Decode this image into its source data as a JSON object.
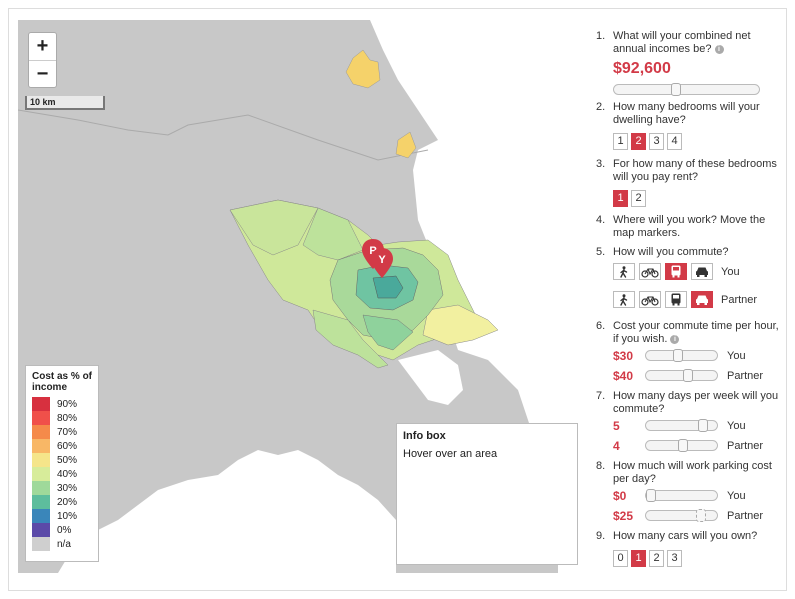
{
  "map": {
    "zoom_in": "+",
    "zoom_out": "−",
    "scale_label": "10 km",
    "legend": {
      "title": "Cost as % of income",
      "items": [
        {
          "label": "90%",
          "color": "#d7303f"
        },
        {
          "label": "80%",
          "color": "#f0504a"
        },
        {
          "label": "70%",
          "color": "#f58a4a"
        },
        {
          "label": "60%",
          "color": "#f8b766"
        },
        {
          "label": "50%",
          "color": "#f5e58a"
        },
        {
          "label": "40%",
          "color": "#d7ec9a"
        },
        {
          "label": "30%",
          "color": "#9fd99a"
        },
        {
          "label": "20%",
          "color": "#5dbd9d"
        },
        {
          "label": "10%",
          "color": "#3a86ba"
        },
        {
          "label": "0%",
          "color": "#5b4aa8"
        },
        {
          "label": "n/a",
          "color": "#cfcfcf"
        }
      ]
    },
    "infobox": {
      "title": "Info box",
      "text": "Hover over an area"
    },
    "markers": [
      "P",
      "Y"
    ]
  },
  "questions": {
    "q1": {
      "num": "1.",
      "text": "What will your combined net annual incomes be?",
      "value": "$92,600",
      "slider_fraction": 0.43
    },
    "q2": {
      "num": "2.",
      "text": "How many bedrooms will your dwelling have?",
      "options": [
        "1",
        "2",
        "3",
        "4"
      ],
      "selected": 1
    },
    "q3": {
      "num": "3.",
      "text": "For how many of these bedrooms will you pay rent?",
      "options": [
        "1",
        "2"
      ],
      "selected": 0
    },
    "q4": {
      "num": "4.",
      "text": "Where will you work? Move the map markers."
    },
    "q5": {
      "num": "5.",
      "text": "How will you commute?",
      "you_label": "You",
      "partner_label": "Partner",
      "modes": [
        "walk",
        "bike",
        "bus",
        "car"
      ],
      "you_selected": "bus",
      "partner_selected": "car"
    },
    "q6": {
      "num": "6.",
      "text": "Cost your commute time per hour, if you wish.",
      "you_value": "$30",
      "partner_value": "$40",
      "you_label": "You",
      "partner_label": "Partner",
      "you_fraction": 0.45,
      "partner_fraction": 0.62
    },
    "q7": {
      "num": "7.",
      "text": "How many days per week will you commute?",
      "you_value": "5",
      "partner_value": "4",
      "you_label": "You",
      "partner_label": "Partner",
      "you_fraction": 0.88,
      "partner_fraction": 0.55
    },
    "q8": {
      "num": "8.",
      "text": "How much will work parking cost per day?",
      "you_value": "$0",
      "partner_value": "$25",
      "you_label": "You",
      "partner_label": "Partner",
      "you_fraction": 0.0,
      "partner_fraction": 0.84
    },
    "q9": {
      "num": "9.",
      "text": "How many cars will you own?",
      "options": [
        "0",
        "1",
        "2",
        "3"
      ],
      "selected": 1
    }
  },
  "colors": {
    "accent": "#d23a47",
    "land": "#c8c8c8",
    "water": "#ffffff"
  }
}
